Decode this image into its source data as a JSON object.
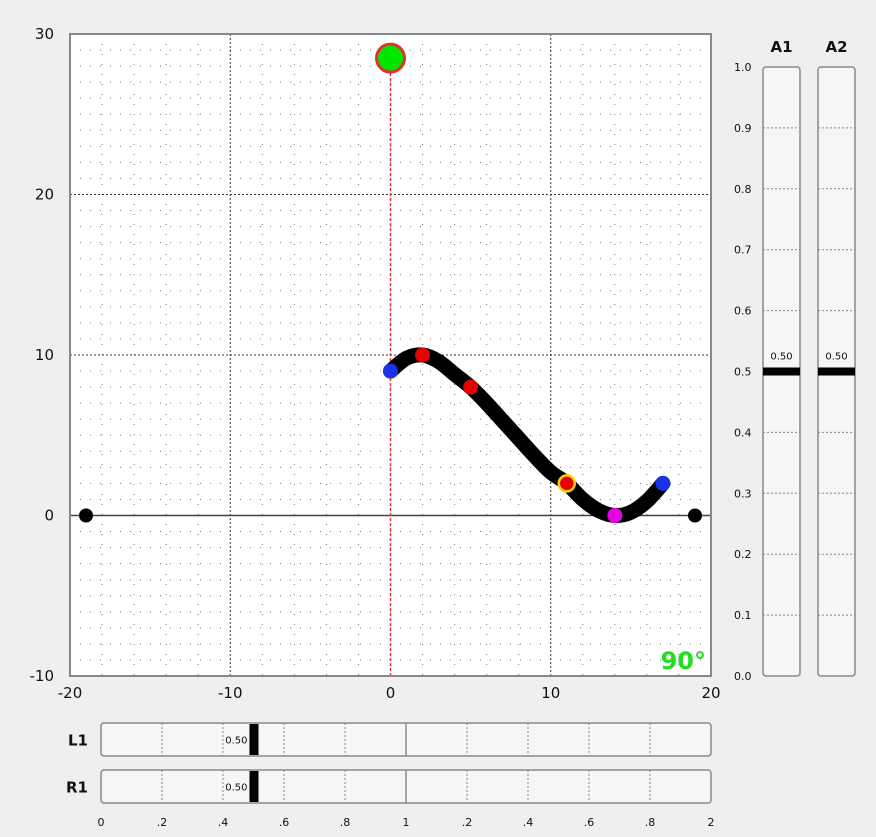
{
  "plot": {
    "x_ticks": [
      "-20",
      "-10",
      "0",
      "10",
      "20"
    ],
    "y_ticks": [
      "30",
      "20",
      "10",
      "0",
      "-10"
    ],
    "x_range": [
      -20,
      20
    ],
    "y_range": [
      -10,
      30
    ],
    "angle_readout": "90°",
    "colors": {
      "curve": "#000000",
      "target": "#00e600",
      "target_border": "#e53030",
      "control_point": "#e60000",
      "endpoint": "#1a33e6",
      "minimum": "#e600e6",
      "highlight": "#f5d000",
      "angle_text": "#22dd22",
      "axis_line": "#e03030"
    },
    "ground_points": [
      {
        "x": -19,
        "y": 0
      },
      {
        "x": 19,
        "y": 0
      }
    ],
    "target": {
      "x": 0,
      "y": 28.5
    },
    "curve_points": [
      {
        "x": 0,
        "y": 9
      },
      {
        "x": 1,
        "y": 9.8
      },
      {
        "x": 2,
        "y": 10
      },
      {
        "x": 3,
        "y": 9.6
      },
      {
        "x": 4,
        "y": 8.8
      },
      {
        "x": 5,
        "y": 8
      },
      {
        "x": 6,
        "y": 7
      },
      {
        "x": 7,
        "y": 5.9
      },
      {
        "x": 8,
        "y": 4.8
      },
      {
        "x": 9,
        "y": 3.7
      },
      {
        "x": 10,
        "y": 2.7
      },
      {
        "x": 11,
        "y": 2
      },
      {
        "x": 12,
        "y": 1
      },
      {
        "x": 13,
        "y": 0.3
      },
      {
        "x": 14,
        "y": 0
      },
      {
        "x": 15,
        "y": 0.2
      },
      {
        "x": 16,
        "y": 0.9
      },
      {
        "x": 17,
        "y": 2
      }
    ],
    "control_points": [
      {
        "x": 2,
        "y": 10
      },
      {
        "x": 5,
        "y": 8
      },
      {
        "x": 11,
        "y": 2
      }
    ],
    "endpoints": [
      {
        "x": 0,
        "y": 9
      },
      {
        "x": 17,
        "y": 2
      }
    ],
    "minimum_point": {
      "x": 14,
      "y": 0
    },
    "highlight_point": {
      "x": 11,
      "y": 2
    }
  },
  "vertical_sliders": {
    "ticks": [
      "1.0",
      "0.9",
      "0.8",
      "0.7",
      "0.6",
      "0.5",
      "0.4",
      "0.3",
      "0.2",
      "0.1",
      "0.0"
    ],
    "items": [
      {
        "label": "A1",
        "value": 0.5,
        "value_text": "0.50"
      },
      {
        "label": "A2",
        "value": 0.5,
        "value_text": "0.50"
      }
    ]
  },
  "horizontal_sliders": {
    "ticks": [
      "0",
      ".2",
      ".4",
      ".6",
      ".8",
      "1",
      ".2",
      ".4",
      ".6",
      ".8",
      "2"
    ],
    "range": [
      0,
      2
    ],
    "items": [
      {
        "label": "L1",
        "value": 0.5,
        "value_text": "0.50"
      },
      {
        "label": "R1",
        "value": 0.5,
        "value_text": "0.50"
      }
    ]
  }
}
